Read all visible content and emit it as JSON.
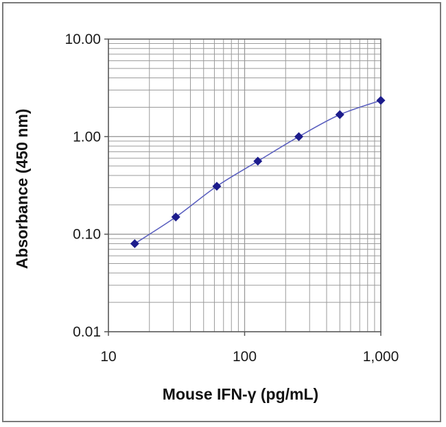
{
  "chart_data": {
    "type": "line",
    "title": "",
    "xlabel": "Mouse IFN-γ (pg/mL)",
    "ylabel": "Absorbance (450 nm)",
    "x_scale": "log",
    "y_scale": "log",
    "xlim": [
      10,
      1000
    ],
    "ylim": [
      0.01,
      10
    ],
    "x_ticks": [
      10,
      100,
      1000
    ],
    "x_tick_labels": [
      "10",
      "100",
      "1,000"
    ],
    "y_ticks": [
      0.01,
      0.1,
      1,
      10
    ],
    "y_tick_labels": [
      "0.01",
      "0.10",
      "1.00",
      "10.00"
    ],
    "grid": true,
    "series": [
      {
        "x": [
          15.6,
          31.25,
          62.5,
          125,
          250,
          500,
          1000
        ],
        "y": [
          0.08,
          0.15,
          0.31,
          0.56,
          1.0,
          1.68,
          2.35
        ]
      }
    ],
    "colors": {
      "line": "#5a5fbf",
      "marker": "#1c1c8c",
      "grid": "#9a9a9a",
      "frame": "#7a7a7a"
    }
  }
}
